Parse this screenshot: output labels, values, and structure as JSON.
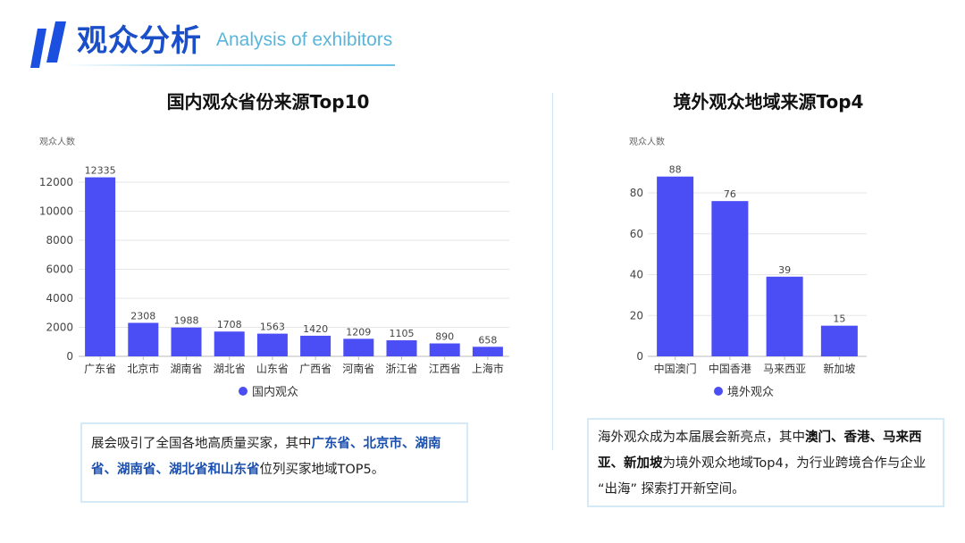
{
  "header": {
    "title": "观众分析",
    "subtitle": "Analysis of exhibitors"
  },
  "colors": {
    "bar": "#4b4df5",
    "accent": "#1a4fc9",
    "grid": "#e6e6e6"
  },
  "chart_data": [
    {
      "type": "bar",
      "title": "国内观众省份来源Top10",
      "ylabel": "观众人数",
      "legend": "国内观众",
      "legend_position": "bottom",
      "categories": [
        "广东省",
        "北京市",
        "湖南省",
        "湖北省",
        "山东省",
        "广西省",
        "河南省",
        "浙江省",
        "江西省",
        "上海市"
      ],
      "values": [
        12335,
        2308,
        1988,
        1708,
        1563,
        1420,
        1209,
        1105,
        890,
        658
      ],
      "yticks": [
        0,
        2000,
        4000,
        6000,
        8000,
        10000,
        12000
      ],
      "ylim": [
        0,
        12000
      ],
      "grid": true
    },
    {
      "type": "bar",
      "title": "境外观众地域来源Top4",
      "ylabel": "观众人数",
      "legend": "境外观众",
      "legend_position": "bottom",
      "categories": [
        "中国澳门",
        "中国香港",
        "马来西亚",
        "新加坡"
      ],
      "values": [
        88,
        76,
        39,
        15
      ],
      "yticks": [
        0,
        20,
        40,
        60,
        80
      ],
      "ylim": [
        0,
        80
      ],
      "grid": true
    }
  ],
  "notes": {
    "left": [
      {
        "t": "展会吸引了全国各地高质量买家，其中",
        "s": "n"
      },
      {
        "t": "广东省、北京市、湖南省、湖南省、湖北省和山东省",
        "s": "hl"
      },
      {
        "t": "位列买家地域TOP5。",
        "s": "n"
      }
    ],
    "right": [
      {
        "t": "海外观众成为本届展会新亮点，其中",
        "s": "n"
      },
      {
        "t": "澳门、香港、马来西亚、新加坡",
        "s": "bd"
      },
      {
        "t": "为境外观众地域Top4，为行业跨境合作与企业 “出海” 探索打开新空间。",
        "s": "n"
      }
    ]
  }
}
